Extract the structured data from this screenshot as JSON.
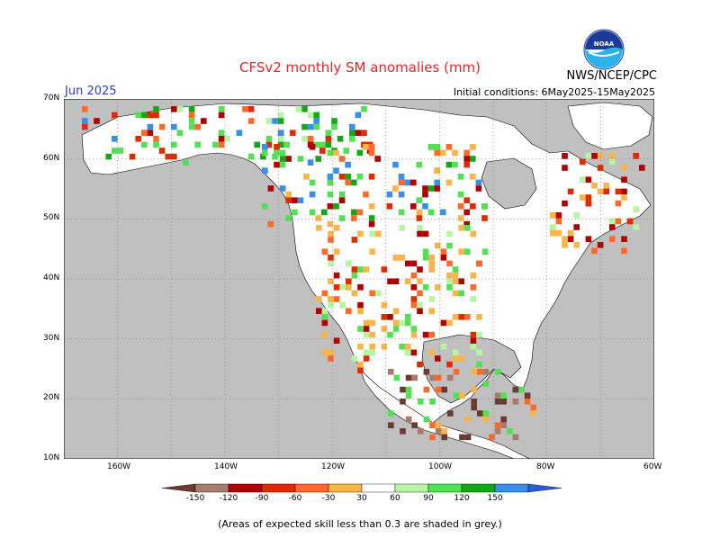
{
  "title": "CFSv2 monthly SM anomalies (mm)",
  "month": "Jun 2025",
  "initial_conditions": "Initial conditions: 6May2025-15May2025",
  "agency": "NWS/NCEP/CPC",
  "logo_text": "NOAA",
  "footnote": "(Areas of expected skill less than 0.3 are shaded in grey.)",
  "lat_labels": [
    "70N",
    "60N",
    "50N",
    "40N",
    "30N",
    "20N",
    "10N"
  ],
  "lon_labels": [
    "160W",
    "140W",
    "120W",
    "100W",
    "80W",
    "60W"
  ],
  "colorbar": {
    "labels": [
      "-150",
      "-120",
      "-90",
      "-60",
      "-30",
      "30",
      "60",
      "90",
      "120",
      "150"
    ],
    "colors": [
      "#6b3a30",
      "#a87c6c",
      "#b00000",
      "#e02a00",
      "#ff6a2a",
      "#f9b54a",
      "#ffffff",
      "#b7f5a4",
      "#54e054",
      "#16a716",
      "#3a8fe8",
      "#2c5dd6"
    ]
  },
  "colors": {
    "ocean_grey": "#c0c0c0",
    "land_white": "#ffffff"
  },
  "map_extent": {
    "lon_min": -170,
    "lon_max": -60,
    "lat_min": 10,
    "lat_max": 70
  }
}
